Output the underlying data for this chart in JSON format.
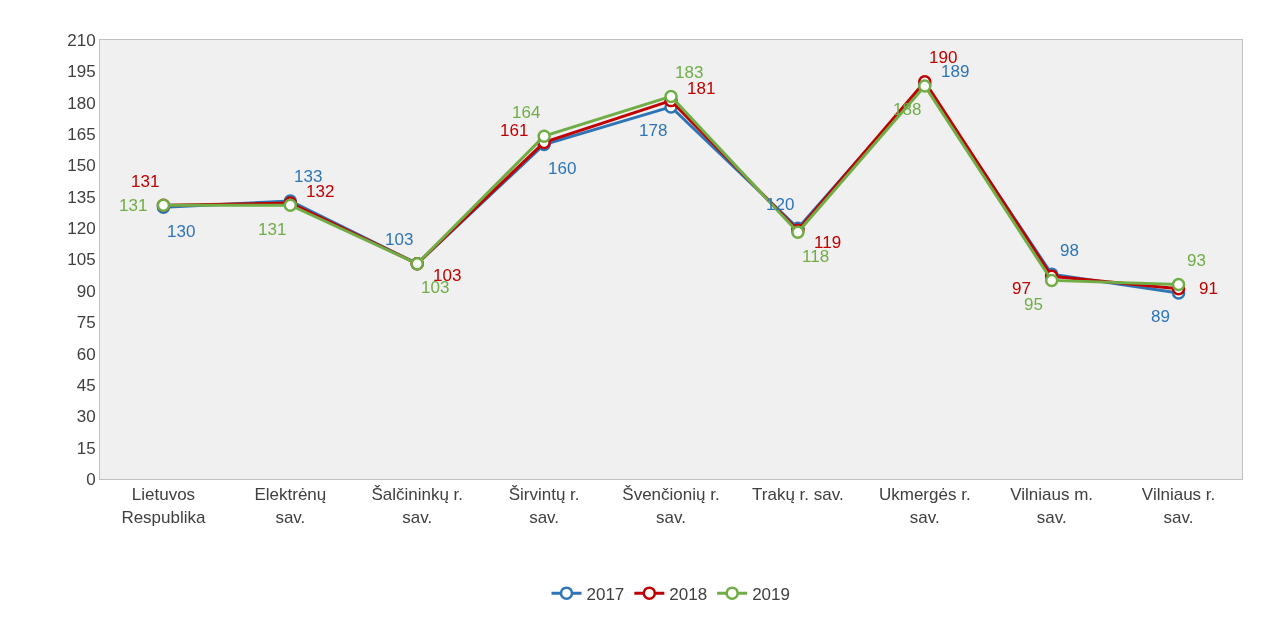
{
  "chart_data": {
    "type": "line",
    "categories": [
      "Lietuvos Respublika",
      "Elektrėnų sav.",
      "Šalčininkų r. sav.",
      "Širvintų r. sav.",
      "Švenčionių r. sav.",
      "Trakų r. sav.",
      "Ukmergės r. sav.",
      "Vilniaus m. sav.",
      "Vilniaus r. sav."
    ],
    "series": [
      {
        "name": "2017",
        "color": "#2e75b6",
        "values": [
          130,
          133,
          103,
          160,
          178,
          120,
          189,
          98,
          89
        ]
      },
      {
        "name": "2018",
        "color": "#c00000",
        "values": [
          131,
          132,
          103,
          161,
          181,
          119,
          190,
          97,
          91
        ]
      },
      {
        "name": "2019",
        "color": "#70ad47",
        "values": [
          131,
          131,
          103,
          164,
          183,
          118,
          188,
          95,
          93
        ]
      }
    ],
    "ylim": [
      0,
      210
    ],
    "yticks": [
      0,
      15,
      30,
      45,
      60,
      75,
      90,
      105,
      120,
      135,
      150,
      165,
      180,
      195,
      210
    ],
    "grid": false,
    "legend": "bottom",
    "marker": "circle",
    "line_style": "solid",
    "data_labels": true
  }
}
